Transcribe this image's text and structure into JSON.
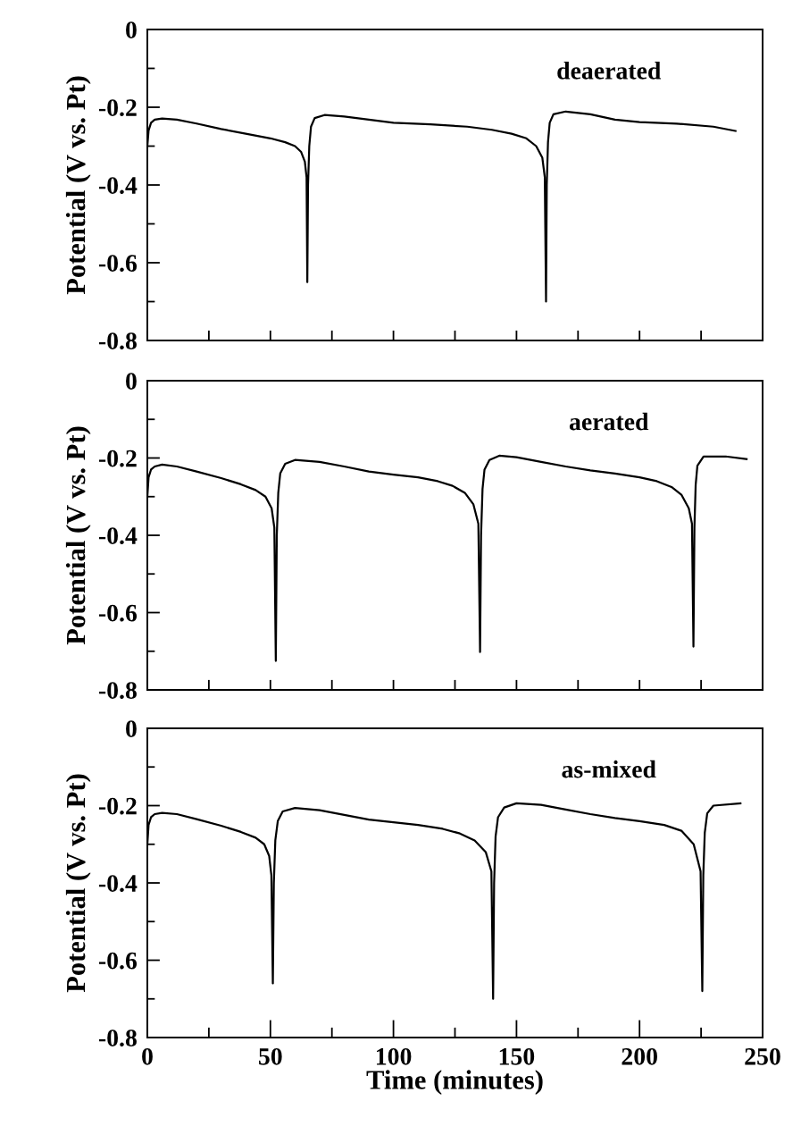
{
  "chart_data": [
    {
      "type": "line",
      "ylabel": "Potential (V vs. Pt)",
      "annotations": [
        "deaerated"
      ],
      "xlim": [
        0,
        250
      ],
      "ylim": [
        -0.8,
        0
      ],
      "tick_labels": "y",
      "xticks": [
        {
          "value": 0,
          "label": null
        },
        {
          "value": 25,
          "label": null
        },
        {
          "value": 50,
          "label": null
        },
        {
          "value": 75,
          "label": null
        },
        {
          "value": 100,
          "label": null
        },
        {
          "value": 125,
          "label": null
        },
        {
          "value": 150,
          "label": null
        },
        {
          "value": 175,
          "label": null
        },
        {
          "value": 200,
          "label": null
        },
        {
          "value": 225,
          "label": null
        },
        {
          "value": 250,
          "label": null
        }
      ],
      "yticks": [
        0,
        {
          "value": -0.1,
          "label": null
        },
        -0.2,
        {
          "value": -0.3,
          "label": null
        },
        -0.4,
        {
          "value": -0.5,
          "label": null
        },
        -0.6,
        {
          "value": -0.7,
          "label": null
        },
        -0.8
      ],
      "series": [
        {
          "color": "#000000",
          "x": [
            0,
            0.5,
            1.5,
            3,
            6,
            12,
            20,
            30,
            40,
            50,
            56,
            60,
            62.5,
            64,
            64.7,
            65,
            65.3,
            65.8,
            66.5,
            68,
            72,
            80,
            90,
            100,
            115,
            130,
            140,
            148,
            154,
            158,
            160.5,
            161.5,
            162,
            162.3,
            162.8,
            163.5,
            165,
            170,
            180,
            190,
            200,
            215,
            230,
            239
          ],
          "values": [
            -0.3,
            -0.26,
            -0.24,
            -0.232,
            -0.229,
            -0.232,
            -0.242,
            -0.256,
            -0.268,
            -0.28,
            -0.29,
            -0.3,
            -0.315,
            -0.34,
            -0.38,
            -0.65,
            -0.4,
            -0.3,
            -0.25,
            -0.228,
            -0.22,
            -0.224,
            -0.232,
            -0.24,
            -0.244,
            -0.25,
            -0.258,
            -0.268,
            -0.28,
            -0.3,
            -0.33,
            -0.38,
            -0.7,
            -0.4,
            -0.29,
            -0.24,
            -0.218,
            -0.211,
            -0.218,
            -0.232,
            -0.238,
            -0.242,
            -0.25,
            -0.261
          ]
        }
      ]
    },
    {
      "type": "line",
      "ylabel": "Potential (V vs. Pt)",
      "annotations": [
        "aerated"
      ],
      "xlim": [
        0,
        250
      ],
      "ylim": [
        -0.8,
        0
      ],
      "tick_labels": "y",
      "xticks": [
        {
          "value": 0,
          "label": null
        },
        {
          "value": 25,
          "label": null
        },
        {
          "value": 50,
          "label": null
        },
        {
          "value": 75,
          "label": null
        },
        {
          "value": 100,
          "label": null
        },
        {
          "value": 125,
          "label": null
        },
        {
          "value": 150,
          "label": null
        },
        {
          "value": 175,
          "label": null
        },
        {
          "value": 200,
          "label": null
        },
        {
          "value": 225,
          "label": null
        },
        {
          "value": 250,
          "label": null
        }
      ],
      "yticks": [
        0,
        {
          "value": -0.1,
          "label": null
        },
        -0.2,
        {
          "value": -0.3,
          "label": null
        },
        -0.4,
        {
          "value": -0.5,
          "label": null
        },
        -0.6,
        {
          "value": -0.7,
          "label": null
        },
        -0.8
      ],
      "series": [
        {
          "color": "#000000",
          "x": [
            0,
            0.5,
            1.5,
            3,
            6,
            12,
            20,
            30,
            38,
            44,
            48,
            50.5,
            51.6,
            52.2,
            52.6,
            53.2,
            54,
            56,
            60,
            70,
            80,
            90,
            100,
            110,
            118,
            124,
            129,
            132.5,
            134.5,
            135.2,
            135.6,
            136.2,
            137,
            139,
            143,
            150,
            160,
            170,
            180,
            190,
            200,
            207,
            213,
            217,
            220,
            221.3,
            221.9,
            222.3,
            222.8,
            223.5,
            226,
            235,
            243.5
          ],
          "values": [
            -0.3,
            -0.25,
            -0.23,
            -0.222,
            -0.217,
            -0.222,
            -0.235,
            -0.252,
            -0.268,
            -0.283,
            -0.3,
            -0.33,
            -0.38,
            -0.725,
            -0.4,
            -0.29,
            -0.24,
            -0.215,
            -0.205,
            -0.21,
            -0.222,
            -0.235,
            -0.243,
            -0.25,
            -0.26,
            -0.272,
            -0.29,
            -0.32,
            -0.37,
            -0.702,
            -0.4,
            -0.28,
            -0.23,
            -0.205,
            -0.194,
            -0.198,
            -0.21,
            -0.222,
            -0.232,
            -0.24,
            -0.25,
            -0.26,
            -0.275,
            -0.295,
            -0.33,
            -0.37,
            -0.688,
            -0.38,
            -0.27,
            -0.22,
            -0.196,
            -0.196,
            -0.203
          ]
        }
      ]
    },
    {
      "type": "line",
      "xlabel": "Time (minutes)",
      "ylabel": "Potential (V vs. Pt)",
      "annotations": [
        "as-mixed"
      ],
      "xlim": [
        0,
        250
      ],
      "ylim": [
        -0.8,
        0
      ],
      "xticks": [
        0,
        {
          "value": 25,
          "label": null
        },
        50,
        {
          "value": 75,
          "label": null
        },
        100,
        {
          "value": 125,
          "label": null
        },
        150,
        {
          "value": 175,
          "label": null
        },
        200,
        {
          "value": 225,
          "label": null
        },
        250
      ],
      "yticks": [
        0,
        {
          "value": -0.1,
          "label": null
        },
        -0.2,
        {
          "value": -0.3,
          "label": null
        },
        -0.4,
        {
          "value": -0.5,
          "label": null
        },
        -0.6,
        {
          "value": -0.7,
          "label": null
        },
        -0.8
      ],
      "series": [
        {
          "color": "#000000",
          "x": [
            0,
            0.5,
            1.5,
            3,
            6,
            12,
            20,
            30,
            38,
            44,
            47.5,
            49.5,
            50.4,
            51,
            51.4,
            52,
            53,
            55,
            60,
            70,
            80,
            90,
            100,
            110,
            120,
            127,
            133,
            137.5,
            139.8,
            140.5,
            140.9,
            141.5,
            142.5,
            145,
            150,
            160,
            170,
            180,
            190,
            200,
            210,
            217,
            222,
            224.8,
            225.5,
            225.9,
            226.5,
            227.5,
            230,
            241
          ],
          "values": [
            -0.3,
            -0.25,
            -0.23,
            -0.222,
            -0.219,
            -0.222,
            -0.235,
            -0.252,
            -0.268,
            -0.283,
            -0.3,
            -0.33,
            -0.38,
            -0.66,
            -0.4,
            -0.29,
            -0.24,
            -0.215,
            -0.206,
            -0.212,
            -0.224,
            -0.236,
            -0.243,
            -0.25,
            -0.26,
            -0.272,
            -0.29,
            -0.32,
            -0.37,
            -0.7,
            -0.4,
            -0.28,
            -0.23,
            -0.205,
            -0.194,
            -0.198,
            -0.21,
            -0.222,
            -0.232,
            -0.24,
            -0.25,
            -0.265,
            -0.3,
            -0.37,
            -0.68,
            -0.38,
            -0.27,
            -0.22,
            -0.2,
            -0.194
          ]
        }
      ]
    }
  ]
}
